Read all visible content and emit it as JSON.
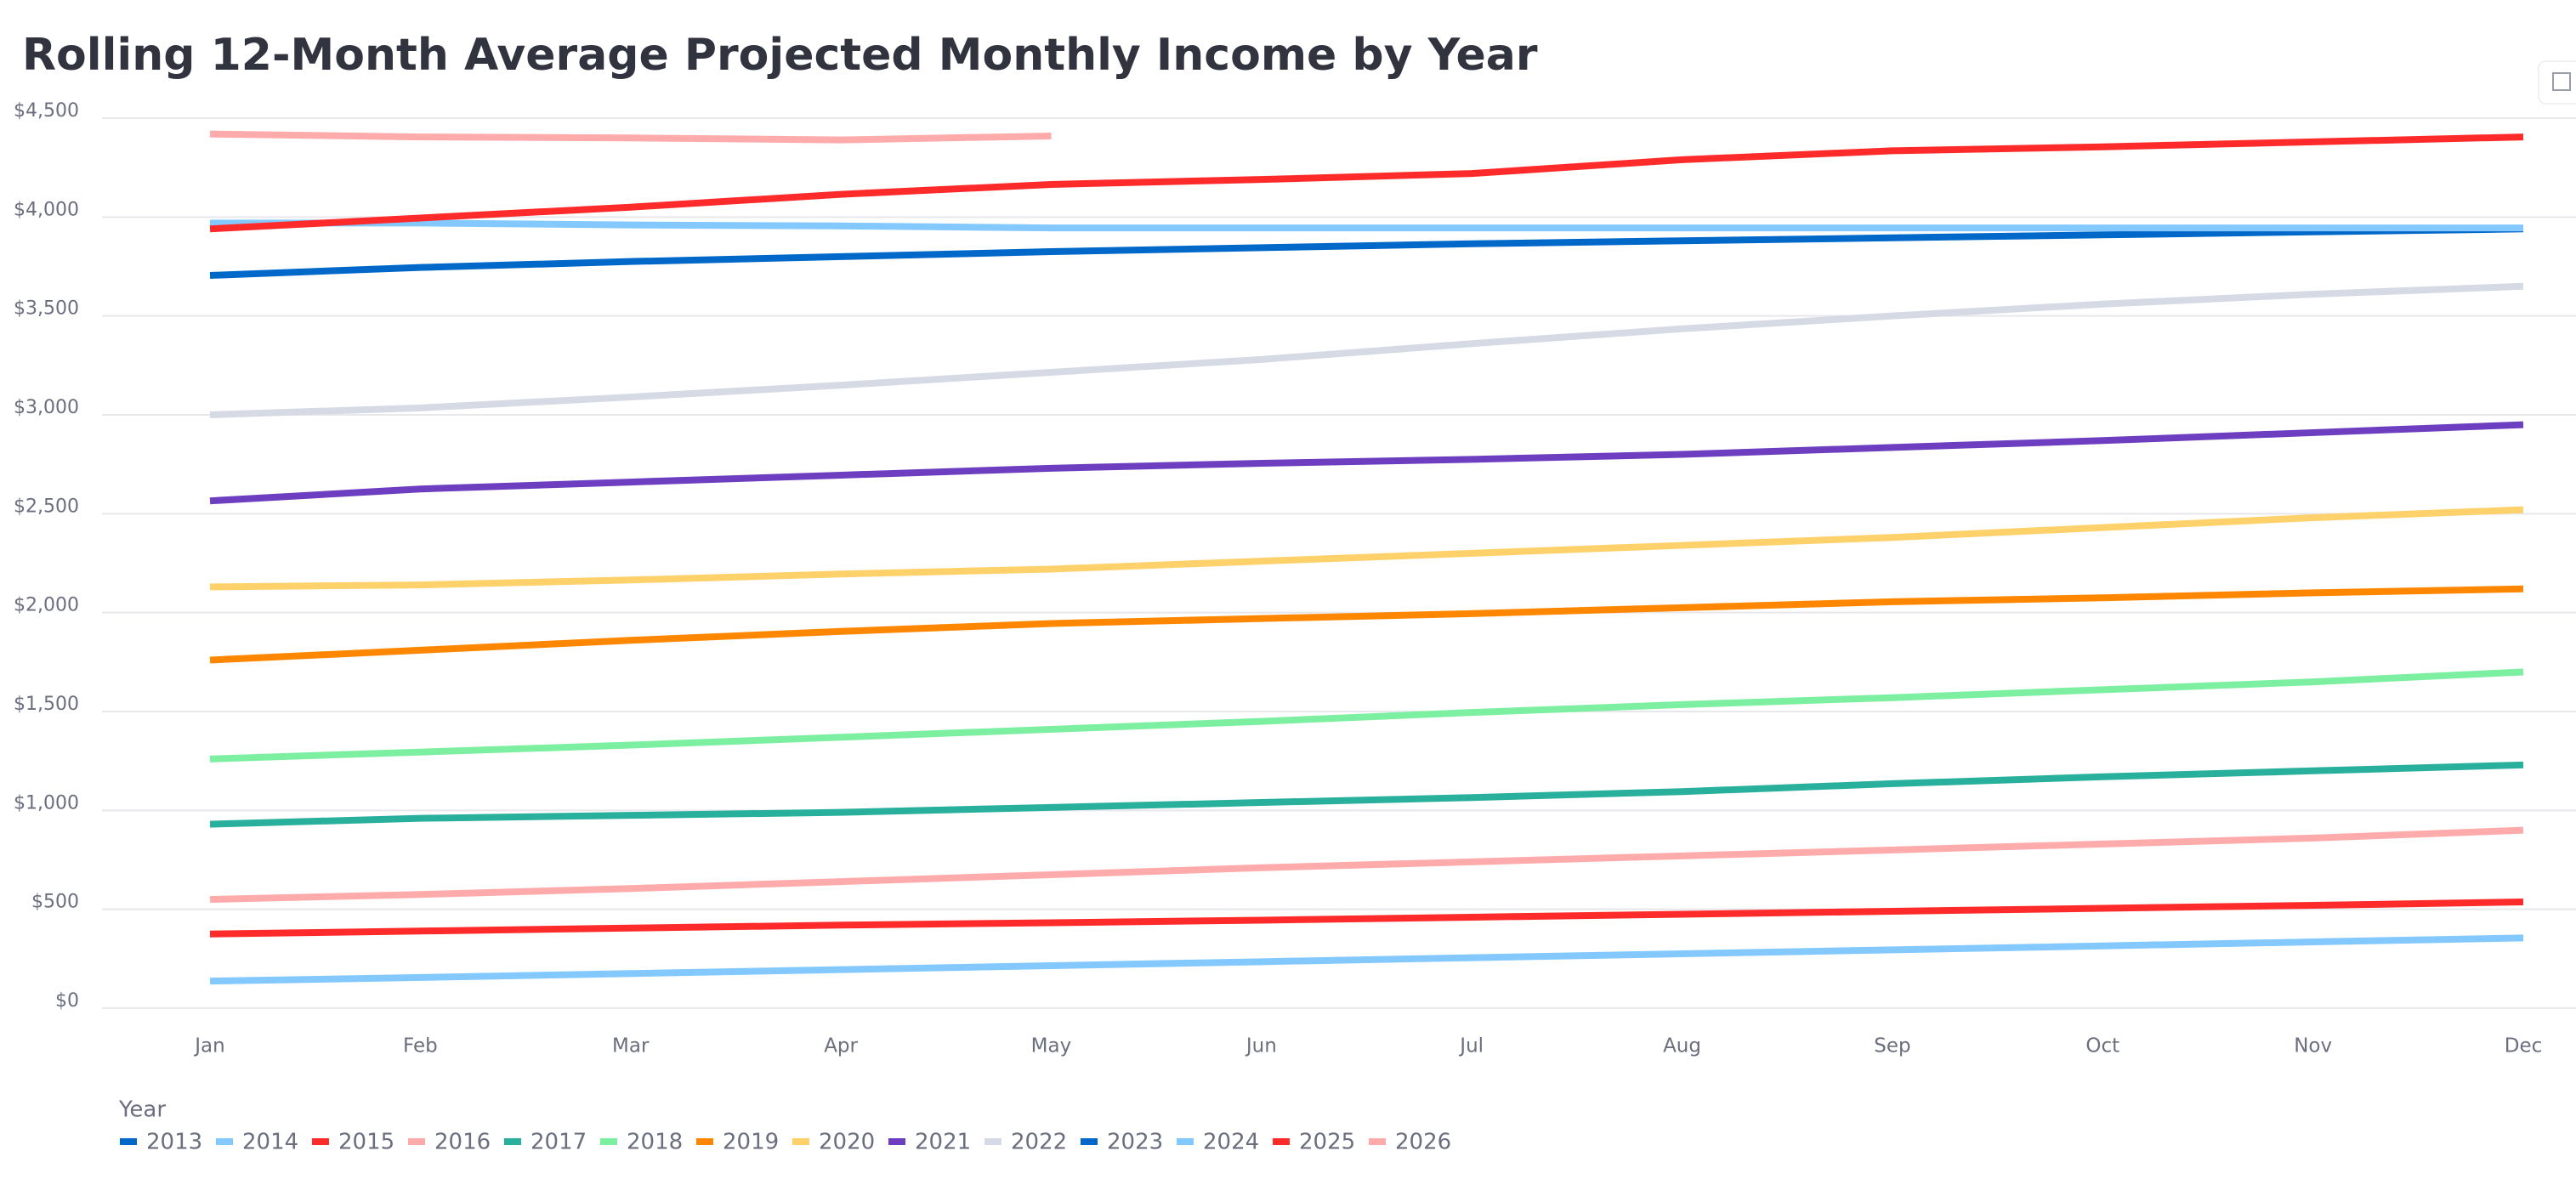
{
  "chart_data": {
    "type": "line",
    "title": "Rolling 12-Month Average Projected Monthly Income by Year",
    "categories": [
      "Jan",
      "Feb",
      "Mar",
      "Apr",
      "May",
      "Jun",
      "Jul",
      "Aug",
      "Sep",
      "Oct",
      "Nov",
      "Dec"
    ],
    "legend_title": "Year",
    "series": [
      {
        "name": "2013",
        "color": "#0068c9",
        "values": [
          null,
          null,
          null,
          null,
          null,
          null,
          null,
          null,
          null,
          null,
          null,
          null
        ]
      },
      {
        "name": "2014",
        "color": "#83c9ff",
        "values": [
          137,
          155,
          175,
          195,
          215,
          235,
          255,
          275,
          295,
          315,
          335,
          355
        ]
      },
      {
        "name": "2015",
        "color": "#ff2b2b",
        "values": [
          375,
          390,
          405,
          420,
          432,
          445,
          460,
          475,
          490,
          505,
          520,
          537
        ]
      },
      {
        "name": "2016",
        "color": "#ffabab",
        "values": [
          550,
          575,
          605,
          640,
          675,
          710,
          740,
          770,
          800,
          830,
          860,
          900
        ]
      },
      {
        "name": "2017",
        "color": "#29b09d",
        "values": [
          930,
          960,
          975,
          990,
          1015,
          1040,
          1065,
          1095,
          1135,
          1170,
          1200,
          1230
        ]
      },
      {
        "name": "2018",
        "color": "#7defa1",
        "values": [
          1260,
          1295,
          1330,
          1370,
          1410,
          1450,
          1495,
          1535,
          1570,
          1610,
          1650,
          1700
        ]
      },
      {
        "name": "2019",
        "color": "#ff8700",
        "values": [
          1760,
          1810,
          1860,
          1905,
          1945,
          1970,
          1995,
          2025,
          2055,
          2075,
          2100,
          2120
        ]
      },
      {
        "name": "2020",
        "color": "#ffd16a",
        "values": [
          2130,
          2140,
          2165,
          2195,
          2220,
          2260,
          2300,
          2340,
          2380,
          2430,
          2480,
          2520
        ]
      },
      {
        "name": "2021",
        "color": "#6d3fc0",
        "values": [
          2565,
          2625,
          2660,
          2695,
          2730,
          2755,
          2775,
          2800,
          2835,
          2870,
          2910,
          2950
        ]
      },
      {
        "name": "2022",
        "color": "#d5dae5",
        "values": [
          3000,
          3035,
          3090,
          3150,
          3215,
          3280,
          3360,
          3435,
          3500,
          3560,
          3610,
          3650
        ]
      },
      {
        "name": "2023",
        "color": "#0068c9",
        "values": [
          3705,
          3745,
          3775,
          3800,
          3825,
          3845,
          3865,
          3880,
          3895,
          3910,
          3925,
          3940
        ]
      },
      {
        "name": "2024",
        "color": "#83c9ff",
        "values": [
          3970,
          3970,
          3960,
          3955,
          3945,
          3945,
          3945,
          3945,
          3945,
          3945,
          3945,
          3945
        ]
      },
      {
        "name": "2025",
        "color": "#ff2b2b",
        "values": [
          3940,
          3995,
          4050,
          4115,
          4165,
          4190,
          4220,
          4290,
          4335,
          4355,
          4380,
          4405
        ]
      },
      {
        "name": "2026",
        "color": "#ffabab",
        "values": [
          4420,
          4405,
          4400,
          4390,
          4410,
          null,
          null,
          null,
          null,
          null,
          null,
          null
        ]
      }
    ],
    "ylim": [
      0,
      4500
    ],
    "yticks": [
      {
        "value": 0,
        "label": "$0"
      },
      {
        "value": 500,
        "label": "$500"
      },
      {
        "value": 1000,
        "label": "$1,000"
      },
      {
        "value": 1500,
        "label": "$1,500"
      },
      {
        "value": 2000,
        "label": "$2,000"
      },
      {
        "value": 2500,
        "label": "$2,500"
      },
      {
        "value": 3000,
        "label": "$3,000"
      },
      {
        "value": 3500,
        "label": "$3,500"
      },
      {
        "value": 4000,
        "label": "$4,000"
      },
      {
        "value": 4500,
        "label": "$4,500"
      }
    ],
    "grid": true
  }
}
